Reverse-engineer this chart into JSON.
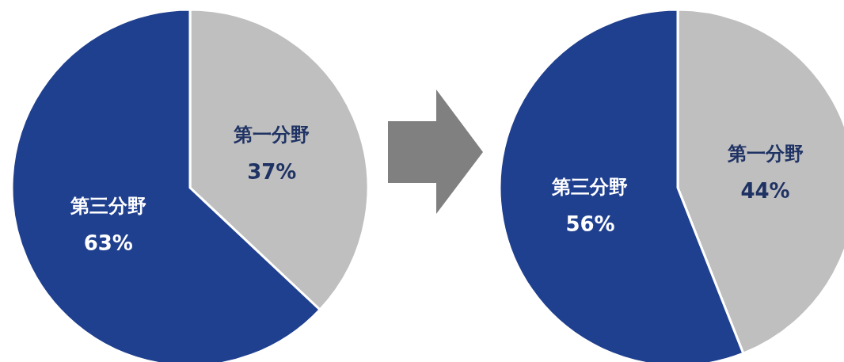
{
  "chart_data": [
    {
      "type": "pie",
      "categories": [
        "第一分野",
        "第三分野"
      ],
      "values": [
        37,
        63
      ],
      "colors": [
        "#bfbfbf",
        "#1f3f8f"
      ],
      "value_labels": [
        "37%",
        "63%"
      ]
    },
    {
      "type": "pie",
      "categories": [
        "第一分野",
        "第三分野"
      ],
      "values": [
        44,
        56
      ],
      "colors": [
        "#bfbfbf",
        "#1f3f8f"
      ],
      "value_labels": [
        "44%",
        "56%"
      ]
    }
  ]
}
